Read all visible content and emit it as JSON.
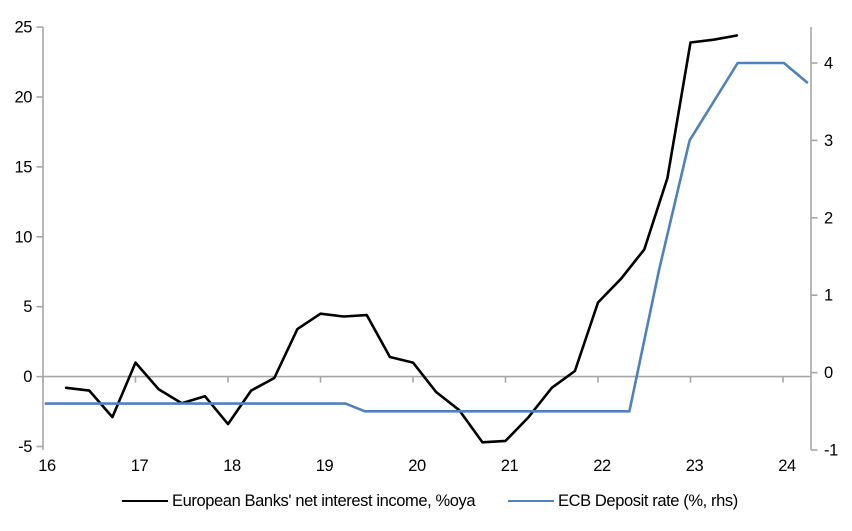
{
  "chart_data": {
    "type": "line",
    "title": "",
    "legend_position": "bottom",
    "axis_color": "#a6a6a6",
    "zero_line": true,
    "x_axis": {
      "tick_years": [
        2016,
        2017,
        2018,
        2019,
        2020,
        2021,
        2022,
        2023,
        2024
      ],
      "tick_labels": [
        "16",
        "17",
        "18",
        "19",
        "20",
        "21",
        "22",
        "23",
        "24"
      ],
      "range_years": [
        2016,
        2024.31
      ]
    },
    "left_axis": {
      "ticks": [
        25,
        20,
        15,
        10,
        5,
        0,
        -5
      ],
      "range": [
        -5,
        25
      ]
    },
    "right_axis": {
      "ticks": [
        4,
        3,
        2,
        1,
        0,
        -1
      ],
      "range": [
        -1,
        4.45
      ]
    },
    "series": [
      {
        "name": "European Banks' net interest income, %oya",
        "axis": "left",
        "color": "#000000",
        "frequency": "quarterly",
        "points": [
          [
            2016.25,
            -0.8
          ],
          [
            2016.5,
            -1.0
          ],
          [
            2016.75,
            -2.9
          ],
          [
            2017.0,
            1.0
          ],
          [
            2017.25,
            -0.9
          ],
          [
            2017.5,
            -1.9
          ],
          [
            2017.75,
            -1.4
          ],
          [
            2018.0,
            -3.4
          ],
          [
            2018.25,
            -1.0
          ],
          [
            2018.5,
            -0.1
          ],
          [
            2018.75,
            3.4
          ],
          [
            2019.0,
            4.5
          ],
          [
            2019.25,
            4.3
          ],
          [
            2019.5,
            4.4
          ],
          [
            2019.75,
            1.4
          ],
          [
            2020.0,
            1.0
          ],
          [
            2020.25,
            -1.1
          ],
          [
            2020.5,
            -2.4
          ],
          [
            2020.75,
            -4.7
          ],
          [
            2021.0,
            -4.6
          ],
          [
            2021.25,
            -2.9
          ],
          [
            2021.5,
            -0.8
          ],
          [
            2021.75,
            0.4
          ],
          [
            2022.0,
            5.3
          ],
          [
            2022.25,
            7.0
          ],
          [
            2022.5,
            9.1
          ],
          [
            2022.75,
            14.2
          ],
          [
            2023.0,
            23.9
          ],
          [
            2023.25,
            24.1
          ],
          [
            2023.5,
            24.4
          ]
        ]
      },
      {
        "name": "ECB Deposit rate (%, rhs)",
        "axis": "right",
        "color": "#4f81bd",
        "frequency": "monthly",
        "points": [
          [
            2016.03,
            -0.4
          ],
          [
            2019.27,
            -0.4
          ],
          [
            2019.48,
            -0.5
          ],
          [
            2022.34,
            -0.5
          ],
          [
            2022.66,
            1.33
          ],
          [
            2022.99,
            3.0
          ],
          [
            2023.51,
            4.0
          ],
          [
            2024.01,
            4.0
          ],
          [
            2024.26,
            3.75
          ]
        ]
      }
    ]
  }
}
